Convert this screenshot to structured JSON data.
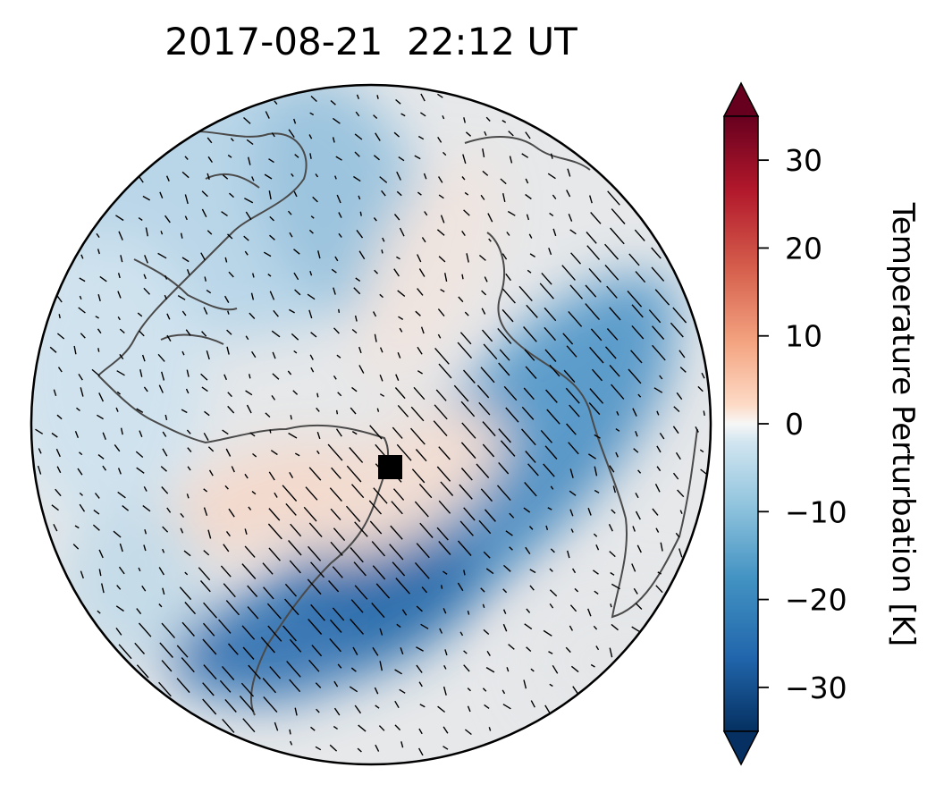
{
  "title": "2017-08-21  22:12 UT",
  "map": {
    "projection": "orthographic",
    "field": "Temperature Perturbation",
    "marker": "black-square",
    "wind_vectors": true,
    "coastlines": true
  },
  "colorbar": {
    "label": "Temperature Perturbation [K]",
    "colormap": "RdBu_r",
    "min": -35,
    "max": 35,
    "extend": "both",
    "ticks": [
      30,
      20,
      10,
      0,
      -10,
      -20,
      -30
    ],
    "tick_labels": [
      "30",
      "20",
      "10",
      "0",
      "−10",
      "−20",
      "−30"
    ]
  },
  "colors": {
    "ocean_neutral": "#e8e8e8",
    "cold": "#2166ac",
    "warm": "#b2182b",
    "coastline": "#4a4a4a"
  }
}
